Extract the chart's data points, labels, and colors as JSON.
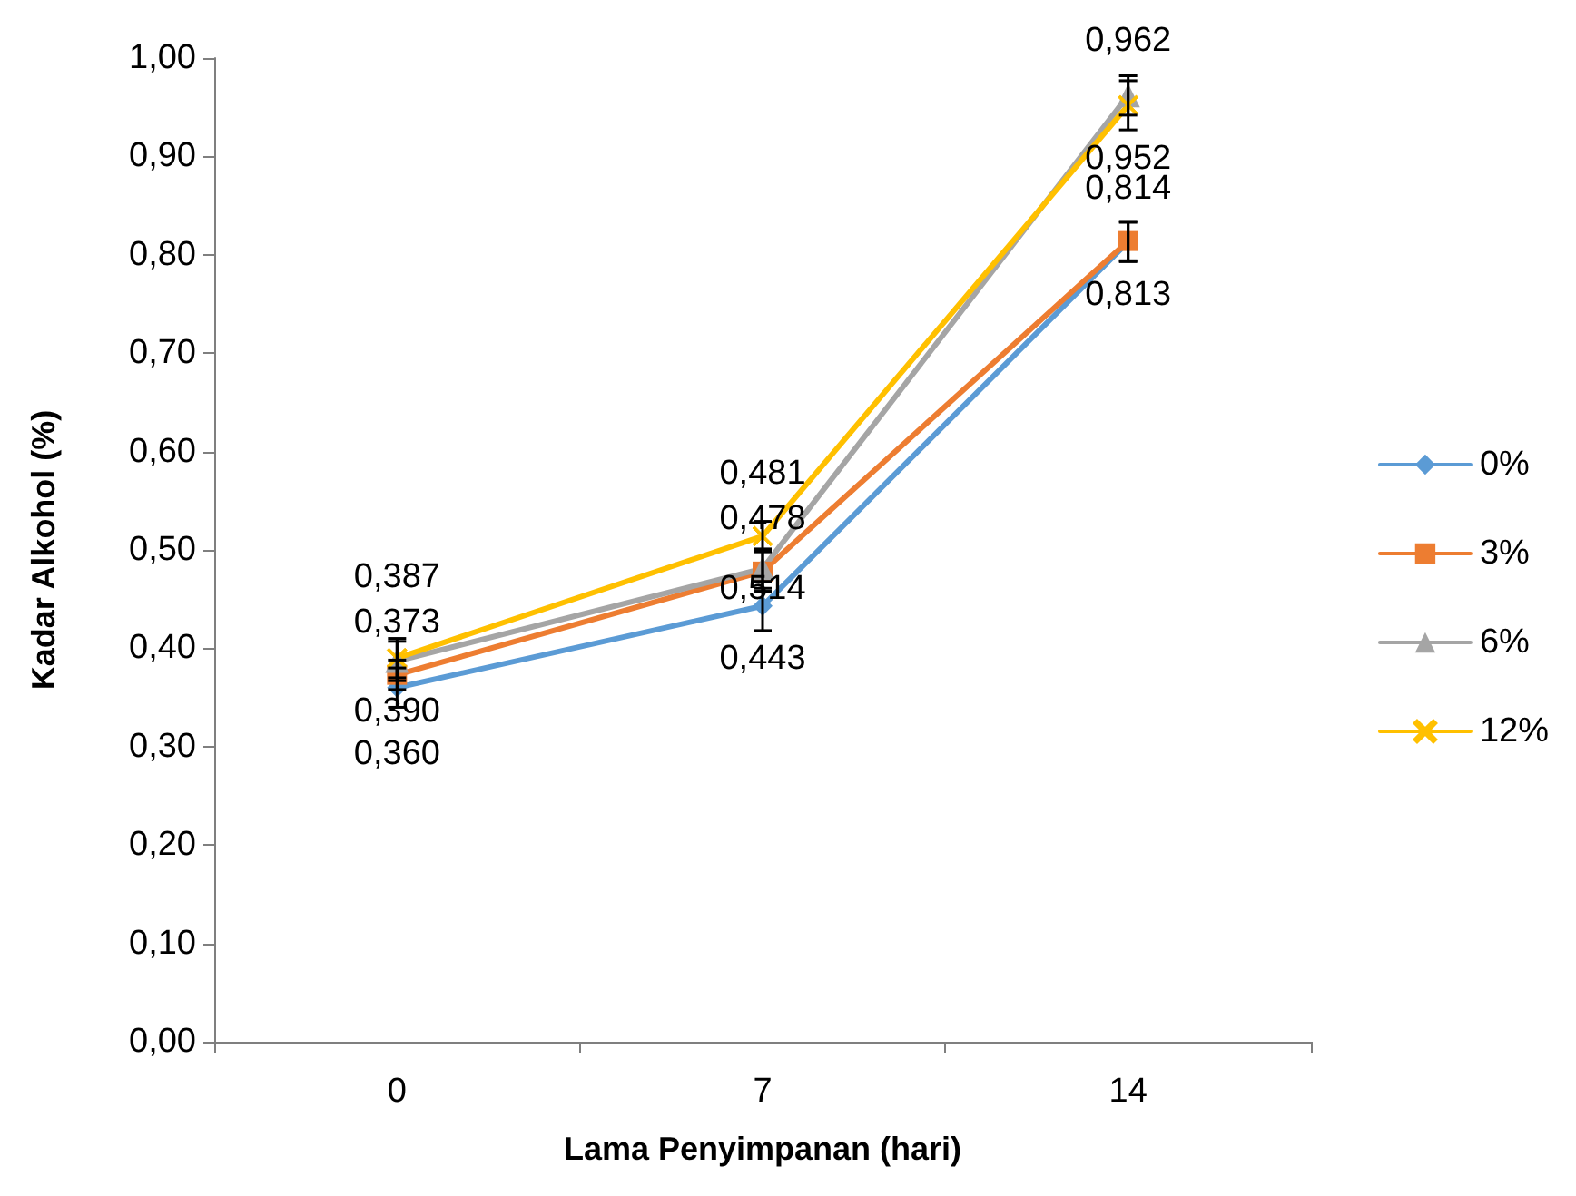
{
  "chart_data": {
    "type": "line",
    "xlabel": "Lama Penyimpanan (hari)",
    "ylabel": "Kadar Alkohol (%)",
    "categories": [
      "0",
      "7",
      "14"
    ],
    "ylim": [
      0,
      1
    ],
    "yticks": [
      {
        "value": 0,
        "label": "0,00"
      },
      {
        "value": 0.1,
        "label": "0,10"
      },
      {
        "value": 0.2,
        "label": "0,20"
      },
      {
        "value": 0.3,
        "label": "0,30"
      },
      {
        "value": 0.4,
        "label": "0,40"
      },
      {
        "value": 0.5,
        "label": "0,50"
      },
      {
        "value": 0.6,
        "label": "0,60"
      },
      {
        "value": 0.7,
        "label": "0,70"
      },
      {
        "value": 0.8,
        "label": "0,80"
      },
      {
        "value": 0.9,
        "label": "0,90"
      },
      {
        "value": 1,
        "label": "1,00"
      }
    ],
    "grid": false,
    "legend": "right",
    "line_style": "solid",
    "series": [
      {
        "name": "0%",
        "color": "#5b9bd5",
        "marker": "diamond",
        "values": [
          0.36,
          0.443,
          0.813
        ],
        "value_labels": [
          "0,360",
          "0,443",
          "0,813"
        ],
        "errors": [
          0.02,
          0.025,
          0.02
        ]
      },
      {
        "name": "3%",
        "color": "#ed7d31",
        "marker": "square",
        "values": [
          0.373,
          0.478,
          0.814
        ],
        "value_labels": [
          "0,373",
          "0,478",
          "0,814"
        ],
        "errors": [
          0.015,
          0.02,
          0.02
        ]
      },
      {
        "name": "6%",
        "color": "#a5a5a5",
        "marker": "triangle",
        "values": [
          0.387,
          0.481,
          0.962
        ],
        "value_labels": [
          "0,387",
          "0,481",
          "0,962"
        ],
        "errors": [
          0.02,
          0.02,
          0.02
        ]
      },
      {
        "name": "12%",
        "color": "#ffc000",
        "marker": "cross",
        "values": [
          0.39,
          0.514,
          0.952
        ],
        "value_labels": [
          "0,390",
          "0,514",
          "0,952"
        ],
        "errors": [
          0.02,
          0.015,
          0.025
        ]
      }
    ]
  }
}
